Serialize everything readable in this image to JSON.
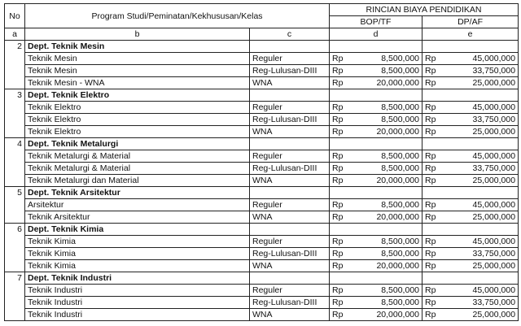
{
  "header": {
    "no": "No",
    "program": "Program Studi/Peminatan/Kekhususan/Kelas",
    "rincian": "RINCIAN BIAYA PENDIDIKAN",
    "bop": "BOP/TF",
    "dp": "DP/AF",
    "letters": [
      "a",
      "b",
      "c",
      "d",
      "e"
    ]
  },
  "currency": "Rp",
  "departments": [
    {
      "no": "2",
      "name": "Dept. Teknik Mesin",
      "rows": [
        [
          "Teknik Mesin",
          "Reguler",
          "8,500,000",
          "45,000,000"
        ],
        [
          "Teknik Mesin",
          "Reg-Lulusan-DIII",
          "8,500,000",
          "33,750,000"
        ],
        [
          "Teknik Mesin - WNA",
          "WNA",
          "20,000,000",
          "25,000,000"
        ]
      ]
    },
    {
      "no": "3",
      "name": "Dept. Teknik Elektro",
      "rows": [
        [
          "Teknik Elektro",
          "Reguler",
          "8,500,000",
          "45,000,000"
        ],
        [
          "Teknik Elektro",
          "Reg-Lulusan-DIII",
          "8,500,000",
          "33,750,000"
        ],
        [
          "Teknik Elektro",
          "WNA",
          "20,000,000",
          "25,000,000"
        ]
      ]
    },
    {
      "no": "4",
      "name": "Dept. Teknik Metalurgi",
      "rows": [
        [
          "Teknik Metalurgi & Material",
          "Reguler",
          "8,500,000",
          "45,000,000"
        ],
        [
          "Teknik Metalurgi & Material",
          "Reg-Lulusan-DIII",
          "8,500,000",
          "33,750,000"
        ],
        [
          "Teknik Metalurgi dan Material",
          "WNA",
          "20,000,000",
          "25,000,000"
        ]
      ]
    },
    {
      "no": "5",
      "name": "Dept. Teknik Arsitektur",
      "rows": [
        [
          "Arsitektur",
          "Reguler",
          "8,500,000",
          "45,000,000"
        ],
        [
          "Teknik Arsitektur",
          "WNA",
          "20,000,000",
          "25,000,000"
        ]
      ]
    },
    {
      "no": "6",
      "name": "Dept. Teknik Kimia",
      "rows": [
        [
          "Teknik Kimia",
          "Reguler",
          "8,500,000",
          "45,000,000"
        ],
        [
          "Teknik Kimia",
          "Reg-Lulusan-DIII",
          "8,500,000",
          "33,750,000"
        ],
        [
          "Teknik Kimia",
          "WNA",
          "20,000,000",
          "25,000,000"
        ]
      ]
    },
    {
      "no": "7",
      "name": "Dept. Teknik Industri",
      "rows": [
        [
          "Teknik Industri",
          "Reguler",
          "8,500,000",
          "45,000,000"
        ],
        [
          "Teknik Industri",
          "Reg-Lulusan-DIII",
          "8,500,000",
          "33,750,000"
        ],
        [
          "Teknik Industri",
          "WNA",
          "20,000,000",
          "25,000,000"
        ]
      ]
    }
  ]
}
